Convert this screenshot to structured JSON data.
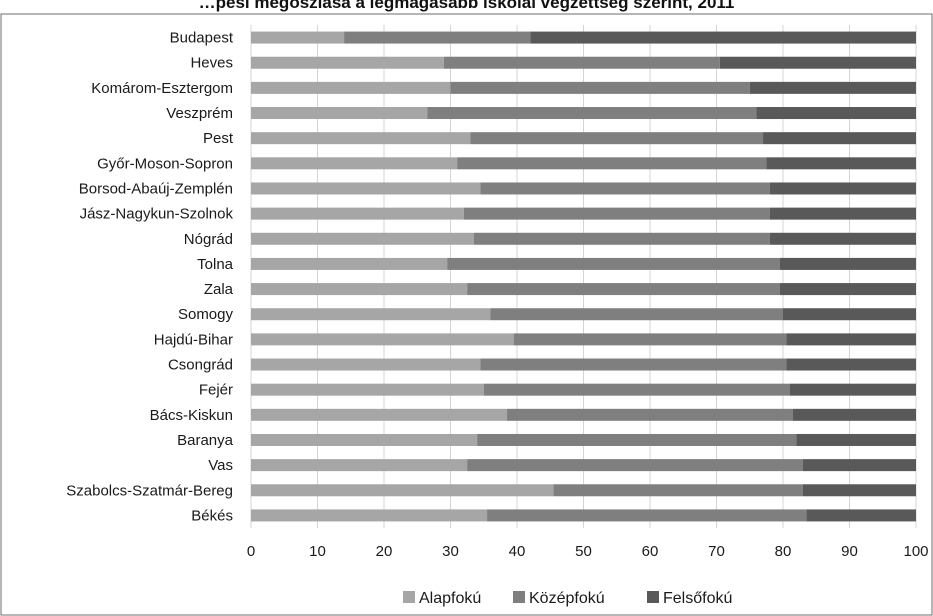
{
  "chart_data": {
    "type": "bar",
    "orientation": "horizontal",
    "stacked": true,
    "title": "…pesi megoszlása a legmagasabb iskolai végzettség szerint, 2011",
    "categories": [
      "Budapest",
      "Heves",
      "Komárom-Esztergom",
      "Veszprém",
      "Pest",
      "Győr-Moson-Sopron",
      "Borsod-Abaúj-Zemplén",
      "Jász-Nagykun-Szolnok",
      "Nógrád",
      "Tolna",
      "Zala",
      "Somogy",
      "Hajdú-Bihar",
      "Csongrád",
      "Fejér",
      "Bács-Kiskun",
      "Baranya",
      "Vas",
      "Szabolcs-Szatmár-Bereg",
      "Békés"
    ],
    "series": [
      {
        "name": "Alapfokú",
        "color": "#a6a6a6",
        "values": [
          14.0,
          29.0,
          30.0,
          26.5,
          33.0,
          31.0,
          34.5,
          32.0,
          33.5,
          29.5,
          32.5,
          36.0,
          39.5,
          34.5,
          35.0,
          38.5,
          34.0,
          32.5,
          45.5,
          35.5
        ]
      },
      {
        "name": "Középfokú",
        "color": "#7f7f7f",
        "values": [
          28.0,
          41.5,
          45.0,
          49.5,
          44.0,
          46.5,
          43.5,
          46.0,
          44.5,
          50.0,
          47.0,
          44.0,
          41.0,
          46.0,
          46.0,
          43.0,
          48.0,
          50.5,
          37.5,
          48.0
        ]
      },
      {
        "name": "Felsőfokú",
        "color": "#595959",
        "values": [
          58.0,
          29.5,
          25.0,
          24.0,
          23.0,
          22.5,
          22.0,
          22.0,
          22.0,
          20.5,
          20.5,
          20.0,
          19.5,
          19.5,
          19.0,
          18.5,
          18.0,
          17.0,
          17.0,
          16.5
        ]
      }
    ],
    "x_ticks": [
      "0",
      "10",
      "20",
      "30",
      "40",
      "50",
      "60",
      "70",
      "80",
      "90",
      "100"
    ],
    "xlim": [
      0,
      100
    ],
    "grid": true,
    "legend_position": "bottom"
  }
}
